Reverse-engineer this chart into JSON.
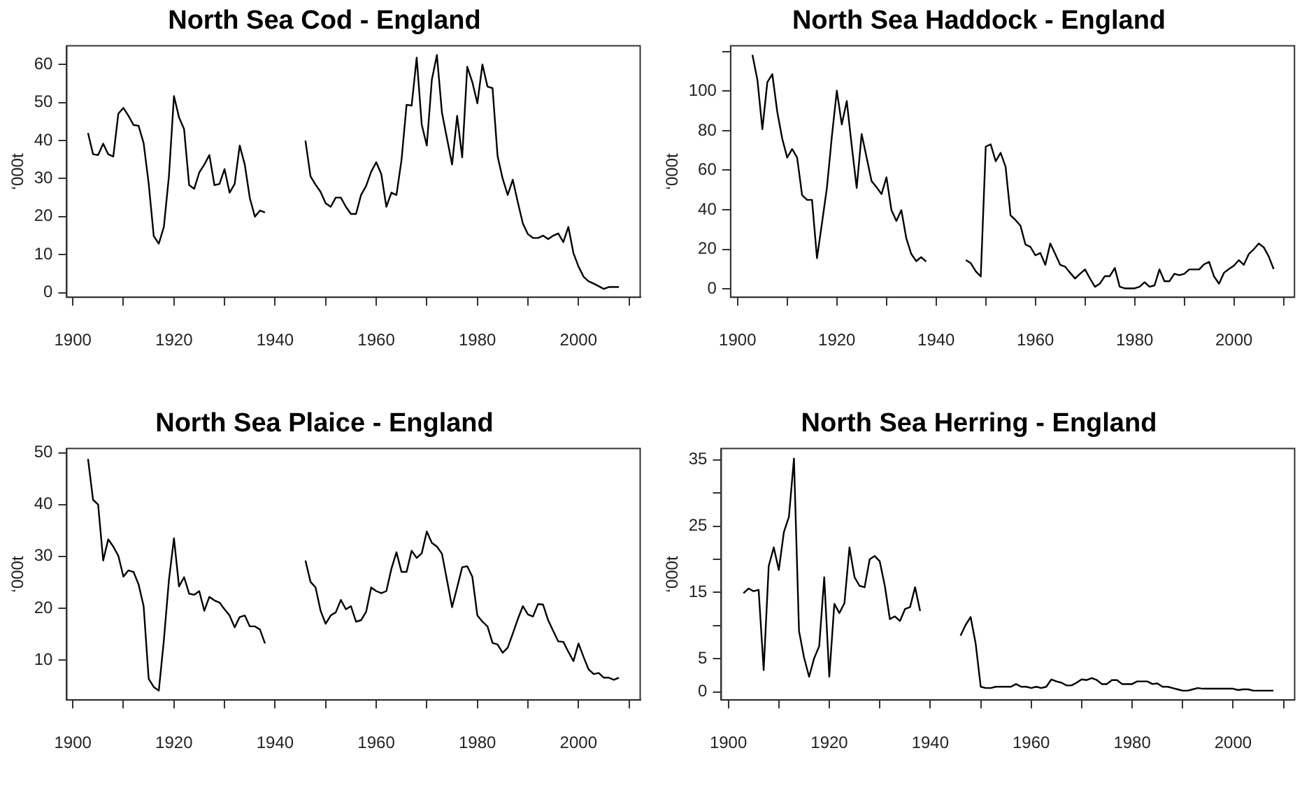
{
  "chart_data": [
    {
      "type": "line",
      "title": "North Sea Cod - England",
      "ylabel": "‘000t",
      "marker": "none",
      "color": "#000000",
      "x": [
        1903,
        1904,
        1905,
        1906,
        1907,
        1908,
        1909,
        1910,
        1911,
        1912,
        1913,
        1914,
        1915,
        1916,
        1917,
        1918,
        1919,
        1920,
        1921,
        1922,
        1923,
        1924,
        1925,
        1926,
        1927,
        1928,
        1929,
        1930,
        1931,
        1932,
        1933,
        1934,
        1935,
        1936,
        1937,
        1938,
        1939,
        1940,
        1941,
        1942,
        1943,
        1944,
        1945,
        1946,
        1947,
        1948,
        1949,
        1950,
        1951,
        1952,
        1953,
        1954,
        1955,
        1956,
        1957,
        1958,
        1959,
        1960,
        1961,
        1962,
        1963,
        1964,
        1965,
        1966,
        1967,
        1968,
        1969,
        1970,
        1971,
        1972,
        1973,
        1974,
        1975,
        1976,
        1977,
        1978,
        1979,
        1980,
        1981,
        1982,
        1983,
        1984,
        1985,
        1986,
        1987,
        1988,
        1989,
        1990,
        1991,
        1992,
        1993,
        1994,
        1995,
        1996,
        1997,
        1998,
        1999,
        2000,
        2001,
        2002,
        2003,
        2004,
        2005,
        2006,
        2007,
        2008
      ],
      "values": [
        42.0,
        36.4,
        36.2,
        39.2,
        36.4,
        35.8,
        47.1,
        48.6,
        46.5,
        44.1,
        43.9,
        39.3,
        28.7,
        14.9,
        12.9,
        17.3,
        30.6,
        51.7,
        46.1,
        43.0,
        28.3,
        27.3,
        31.6,
        33.7,
        36.2,
        28.3,
        28.6,
        32.5,
        26.3,
        28.6,
        38.7,
        33.7,
        24.9,
        20.0,
        21.6,
        21.1,
        null,
        null,
        null,
        null,
        null,
        null,
        null,
        40.0,
        30.6,
        28.4,
        26.5,
        23.5,
        22.6,
        25.0,
        25.0,
        22.6,
        20.7,
        20.7,
        25.7,
        28.1,
        31.8,
        34.3,
        31.2,
        22.6,
        26.3,
        25.7,
        34.9,
        49.4,
        49.2,
        61.8,
        44.2,
        38.7,
        56.0,
        62.5,
        47.3,
        40.5,
        33.7,
        46.5,
        35.6,
        59.4,
        55.4,
        49.8,
        60.0,
        54.2,
        53.8,
        35.9,
        30.0,
        25.7,
        29.7,
        23.8,
        18.2,
        15.4,
        14.4,
        14.4,
        15.0,
        14.1,
        15.0,
        15.6,
        13.3,
        17.3,
        10.4,
        6.9,
        4.2,
        3.0,
        2.4,
        1.7,
        1.0,
        1.5,
        1.5,
        1.5
      ],
      "xlim": [
        1898.8,
        2012.2
      ],
      "xticks": [
        1900,
        {
          "value": 1910,
          "label": null
        },
        1920,
        {
          "value": 1930,
          "label": null
        },
        1940,
        {
          "value": 1950,
          "label": null
        },
        1960,
        {
          "value": 1970,
          "label": null
        },
        1980,
        {
          "value": 1990,
          "label": null
        },
        2000,
        {
          "value": 2010,
          "label": null
        }
      ],
      "ylim": [
        -1.2,
        64.9
      ],
      "yticks": [
        0,
        10,
        20,
        30,
        40,
        50,
        60
      ]
    },
    {
      "type": "line",
      "title": "North Sea Haddock - England",
      "ylabel": "‘000t",
      "marker": "none",
      "color": "#000000",
      "x": [
        1903,
        1904,
        1905,
        1906,
        1907,
        1908,
        1909,
        1910,
        1911,
        1912,
        1913,
        1914,
        1915,
        1916,
        1917,
        1918,
        1919,
        1920,
        1921,
        1922,
        1923,
        1924,
        1925,
        1926,
        1927,
        1928,
        1929,
        1930,
        1931,
        1932,
        1933,
        1934,
        1935,
        1936,
        1937,
        1938,
        1939,
        1940,
        1941,
        1942,
        1943,
        1944,
        1945,
        1946,
        1947,
        1948,
        1949,
        1950,
        1951,
        1952,
        1953,
        1954,
        1955,
        1956,
        1957,
        1958,
        1959,
        1960,
        1961,
        1962,
        1963,
        1964,
        1965,
        1966,
        1967,
        1968,
        1969,
        1970,
        1971,
        1972,
        1973,
        1974,
        1975,
        1976,
        1977,
        1978,
        1979,
        1980,
        1981,
        1982,
        1983,
        1984,
        1985,
        1986,
        1987,
        1988,
        1989,
        1990,
        1991,
        1992,
        1993,
        1994,
        1995,
        1996,
        1997,
        1998,
        1999,
        2000,
        2001,
        2002,
        2003,
        2004,
        2005,
        2006,
        2007,
        2008
      ],
      "values": [
        118.3,
        105.7,
        80.7,
        104.5,
        108.6,
        89.5,
        76.0,
        66.4,
        70.7,
        66.4,
        47.4,
        45.0,
        45.0,
        15.5,
        33.1,
        51.0,
        77.1,
        100.2,
        83.1,
        95.0,
        72.4,
        51.0,
        78.3,
        66.4,
        54.5,
        51.4,
        47.9,
        56.4,
        39.8,
        34.3,
        39.8,
        25.5,
        17.6,
        14.0,
        16.0,
        13.8,
        null,
        null,
        null,
        null,
        null,
        null,
        null,
        14.5,
        12.9,
        8.8,
        6.2,
        71.9,
        73.1,
        64.5,
        68.8,
        61.7,
        37.1,
        34.8,
        31.9,
        22.4,
        21.2,
        16.9,
        18.1,
        12.1,
        22.9,
        17.6,
        12.1,
        11.2,
        8.1,
        5.2,
        7.6,
        9.8,
        5.2,
        1.0,
        2.6,
        6.4,
        6.4,
        10.5,
        1.0,
        0.2,
        0.2,
        0.2,
        1.0,
        3.3,
        1.0,
        1.7,
        9.8,
        3.8,
        3.8,
        7.6,
        6.9,
        7.6,
        9.8,
        9.8,
        9.8,
        12.4,
        13.6,
        6.2,
        2.6,
        8.1,
        10.0,
        11.7,
        14.5,
        12.1,
        17.6,
        20.0,
        22.9,
        21.0,
        16.4,
        10.0
      ],
      "xlim": [
        1898.6,
        2012.2
      ],
      "xticks": [
        1900,
        {
          "value": 1910,
          "label": null
        },
        1920,
        {
          "value": 1930,
          "label": null
        },
        1940,
        {
          "value": 1950,
          "label": null
        },
        1960,
        {
          "value": 1970,
          "label": null
        },
        1980,
        {
          "value": 1990,
          "label": null
        },
        2000,
        {
          "value": 2010,
          "label": null
        }
      ],
      "ylim": [
        -4.3,
        122.9
      ],
      "yticks": [
        0,
        20,
        40,
        60,
        80,
        100,
        {
          "value": 120,
          "label": null
        }
      ]
    },
    {
      "type": "line",
      "title": "North Sea Plaice - England",
      "ylabel": "‘000t",
      "marker": "none",
      "color": "#000000",
      "x": [
        1903,
        1904,
        1905,
        1906,
        1907,
        1908,
        1909,
        1910,
        1911,
        1912,
        1913,
        1914,
        1915,
        1916,
        1917,
        1918,
        1919,
        1920,
        1921,
        1922,
        1923,
        1924,
        1925,
        1926,
        1927,
        1928,
        1929,
        1930,
        1931,
        1932,
        1933,
        1934,
        1935,
        1936,
        1937,
        1938,
        1939,
        1940,
        1941,
        1942,
        1943,
        1944,
        1945,
        1946,
        1947,
        1948,
        1949,
        1950,
        1951,
        1952,
        1953,
        1954,
        1955,
        1956,
        1957,
        1958,
        1959,
        1960,
        1961,
        1962,
        1963,
        1964,
        1965,
        1966,
        1967,
        1968,
        1969,
        1970,
        1971,
        1972,
        1973,
        1974,
        1975,
        1976,
        1977,
        1978,
        1979,
        1980,
        1981,
        1982,
        1983,
        1984,
        1985,
        1986,
        1987,
        1988,
        1989,
        1990,
        1991,
        1992,
        1993,
        1994,
        1995,
        1996,
        1997,
        1998,
        1999,
        2000,
        2001,
        2002,
        2003,
        2004,
        2005,
        2006,
        2007,
        2008
      ],
      "values": [
        48.8,
        40.9,
        40.0,
        29.2,
        33.3,
        31.9,
        30.1,
        26.1,
        27.3,
        27.0,
        24.6,
        20.4,
        6.4,
        4.8,
        4.1,
        13.8,
        25.4,
        33.5,
        24.2,
        26.0,
        22.8,
        22.6,
        23.3,
        19.5,
        22.2,
        21.5,
        21.1,
        19.8,
        18.6,
        16.3,
        18.3,
        18.6,
        16.5,
        16.5,
        15.9,
        13.2,
        null,
        null,
        null,
        null,
        null,
        null,
        null,
        29.2,
        25.1,
        24.0,
        19.5,
        17.0,
        18.6,
        19.2,
        21.6,
        19.8,
        20.4,
        17.4,
        17.7,
        19.3,
        24.0,
        23.3,
        22.9,
        23.3,
        27.6,
        30.8,
        27.0,
        27.0,
        31.1,
        29.7,
        30.6,
        34.8,
        32.6,
        31.9,
        30.5,
        25.4,
        20.2,
        24.0,
        27.9,
        28.1,
        26.1,
        18.6,
        17.4,
        16.5,
        13.3,
        13.0,
        11.4,
        12.4,
        15.1,
        17.9,
        20.4,
        18.8,
        18.4,
        20.8,
        20.7,
        17.7,
        15.6,
        13.6,
        13.5,
        11.6,
        9.8,
        13.2,
        10.6,
        8.2,
        7.3,
        7.5,
        6.6,
        6.6,
        6.2,
        6.6
      ],
      "xlim": [
        1898.8,
        2012.2
      ],
      "xticks": [
        1900,
        {
          "value": 1910,
          "label": null
        },
        1920,
        {
          "value": 1930,
          "label": null
        },
        1940,
        {
          "value": 1950,
          "label": null
        },
        1960,
        {
          "value": 1970,
          "label": null
        },
        1980,
        {
          "value": 1990,
          "label": null
        },
        2000,
        {
          "value": 2010,
          "label": null
        }
      ],
      "ylim": [
        2.3,
        50.8
      ],
      "yticks": [
        10,
        20,
        30,
        40,
        50
      ]
    },
    {
      "type": "line",
      "title": "North Sea Herring - England",
      "ylabel": "‘000t",
      "marker": "none",
      "color": "#000000",
      "x": [
        1903,
        1904,
        1905,
        1906,
        1907,
        1908,
        1909,
        1910,
        1911,
        1912,
        1913,
        1914,
        1915,
        1916,
        1917,
        1918,
        1919,
        1920,
        1921,
        1922,
        1923,
        1924,
        1925,
        1926,
        1927,
        1928,
        1929,
        1930,
        1931,
        1932,
        1933,
        1934,
        1935,
        1936,
        1937,
        1938,
        1939,
        1940,
        1941,
        1942,
        1943,
        1944,
        1945,
        1946,
        1947,
        1948,
        1949,
        1950,
        1951,
        1952,
        1953,
        1954,
        1955,
        1956,
        1957,
        1958,
        1959,
        1960,
        1961,
        1962,
        1963,
        1964,
        1965,
        1966,
        1967,
        1968,
        1969,
        1970,
        1971,
        1972,
        1973,
        1974,
        1975,
        1976,
        1977,
        1978,
        1979,
        1980,
        1981,
        1982,
        1983,
        1984,
        1985,
        1986,
        1987,
        1988,
        1989,
        1990,
        1991,
        1992,
        1993,
        1994,
        1995,
        1996,
        1997,
        1998,
        1999,
        2000,
        2001,
        2002,
        2003,
        2004,
        2005,
        2006,
        2007,
        2008
      ],
      "values": [
        14.9,
        15.6,
        15.2,
        15.4,
        3.3,
        19.0,
        21.8,
        18.4,
        24.1,
        26.4,
        35.2,
        9.2,
        5.2,
        2.3,
        5.1,
        6.9,
        17.3,
        2.3,
        13.3,
        11.9,
        13.4,
        21.8,
        17.3,
        16.0,
        15.8,
        20.0,
        20.5,
        19.7,
        16.0,
        11.0,
        11.4,
        10.7,
        12.5,
        12.8,
        15.8,
        12.2,
        null,
        null,
        null,
        null,
        null,
        null,
        null,
        8.5,
        10.1,
        11.3,
        7.3,
        0.8,
        0.6,
        0.6,
        0.8,
        0.8,
        0.8,
        0.8,
        1.2,
        0.8,
        0.8,
        0.6,
        0.8,
        0.6,
        0.8,
        1.9,
        1.6,
        1.4,
        1.0,
        1.0,
        1.4,
        1.9,
        1.8,
        2.1,
        1.8,
        1.2,
        1.2,
        1.8,
        1.8,
        1.2,
        1.2,
        1.2,
        1.6,
        1.6,
        1.6,
        1.2,
        1.3,
        0.8,
        0.8,
        0.6,
        0.4,
        0.2,
        0.2,
        0.4,
        0.6,
        0.5,
        0.5,
        0.5,
        0.5,
        0.5,
        0.5,
        0.5,
        0.3,
        0.4,
        0.4,
        0.2,
        0.2,
        0.2,
        0.2,
        0.2
      ],
      "xlim": [
        1898.6,
        2012.2
      ],
      "xticks": [
        1900,
        {
          "value": 1910,
          "label": null
        },
        1920,
        {
          "value": 1930,
          "label": null
        },
        1940,
        {
          "value": 1950,
          "label": null
        },
        1960,
        {
          "value": 1970,
          "label": null
        },
        1980,
        {
          "value": 1990,
          "label": null
        },
        2000,
        {
          "value": 2010,
          "label": null
        }
      ],
      "ylim": [
        -1.2,
        36.7
      ],
      "yticks": [
        0,
        5,
        {
          "value": 10,
          "label": null
        },
        15,
        {
          "value": 20,
          "label": null
        },
        25,
        {
          "value": 30,
          "label": null
        },
        35
      ]
    }
  ]
}
